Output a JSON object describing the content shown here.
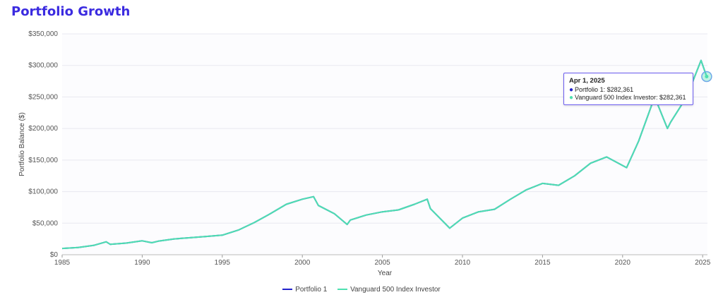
{
  "page": {
    "title": "Portfolio Growth"
  },
  "colors": {
    "title": "#3b2be0",
    "portfolio1": "#2222cc",
    "vanguard": "#4ee0b0",
    "grid": "#e8e8f0"
  },
  "tooltip": {
    "date": "Apr 1, 2025",
    "row1": "Portfolio 1: $282,361",
    "row2": "Vanguard 500 Index Investor: $282,361"
  },
  "chart_data": {
    "type": "line",
    "title": "Portfolio Growth",
    "xlabel": "Year",
    "ylabel": "Portfolio Balance ($)",
    "xlim": [
      1985,
      2025.3
    ],
    "ylim": [
      0,
      350000
    ],
    "x_ticks": [
      "1985",
      "1990",
      "1995",
      "2000",
      "2005",
      "2010",
      "2015",
      "2020",
      "2025"
    ],
    "y_ticks": [
      "$0",
      "$50,000",
      "$100,000",
      "$150,000",
      "$200,000",
      "$250,000",
      "$300,000",
      "$350,000"
    ],
    "grid": true,
    "legend_position": "bottom",
    "x": [
      1985,
      1986,
      1987,
      1987.75,
      1988,
      1989,
      1990,
      1990.6,
      1991,
      1992,
      1993,
      1994,
      1995,
      1996,
      1997,
      1998,
      1999,
      2000,
      2000.7,
      2001,
      2002,
      2002.8,
      2003,
      2004,
      2005,
      2006,
      2007,
      2007.8,
      2008,
      2009.2,
      2010,
      2011,
      2012,
      2013,
      2014,
      2015,
      2016,
      2017,
      2018,
      2019,
      2020.25,
      2021,
      2022,
      2022.8,
      2023,
      2024,
      2024.9,
      2025.25
    ],
    "series": [
      {
        "name": "Portfolio 1",
        "values": [
          10000,
          11500,
          15000,
          20500,
          16500,
          18500,
          22000,
          19000,
          21500,
          25000,
          27000,
          29000,
          31000,
          39000,
          51000,
          65000,
          80000,
          88000,
          92000,
          78000,
          65000,
          48000,
          55000,
          63000,
          68000,
          71000,
          80000,
          88000,
          73000,
          42000,
          58000,
          68000,
          72000,
          88000,
          103000,
          113000,
          110000,
          125000,
          145000,
          155000,
          138000,
          180000,
          250000,
          200000,
          210000,
          250000,
          308000,
          282361
        ]
      },
      {
        "name": "Vanguard 500 Index Investor",
        "values": [
          10000,
          11500,
          15000,
          20500,
          16500,
          18500,
          22000,
          19000,
          21500,
          25000,
          27000,
          29000,
          31000,
          39000,
          51000,
          65000,
          80000,
          88000,
          92000,
          78000,
          65000,
          48000,
          55000,
          63000,
          68000,
          71000,
          80000,
          88000,
          73000,
          42000,
          58000,
          68000,
          72000,
          88000,
          103000,
          113000,
          110000,
          125000,
          145000,
          155000,
          138000,
          180000,
          250000,
          200000,
          210000,
          250000,
          308000,
          282361
        ]
      }
    ]
  }
}
